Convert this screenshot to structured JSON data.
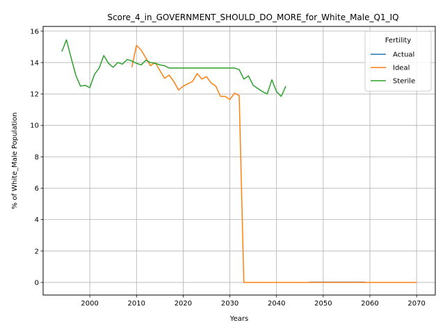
{
  "chart_data": {
    "type": "line",
    "title": "Score_4_in_GOVERNMENT_SHOULD_DO_MORE_for_White_Male_Q1_IQ",
    "xlabel": "Years",
    "ylabel": "% of White_Male Population",
    "xlim": [
      1990,
      2074
    ],
    "ylim": [
      -0.8,
      16.3
    ],
    "x_ticks": [
      2000,
      2010,
      2020,
      2030,
      2040,
      2050,
      2060,
      2070
    ],
    "y_ticks": [
      0,
      2,
      4,
      6,
      8,
      10,
      12,
      14,
      16
    ],
    "grid": true,
    "legend": {
      "title": "Fertility",
      "placement": "top-right"
    },
    "series": [
      {
        "name": "Actual",
        "color": "#1f77b4",
        "points": [
          [
            2047,
            0.02
          ],
          [
            2048,
            0.02
          ],
          [
            2050,
            0.02
          ],
          [
            2052,
            0.02
          ],
          [
            2054,
            0.02
          ],
          [
            2056,
            0.02
          ],
          [
            2058,
            0.02
          ],
          [
            2059,
            0.02
          ]
        ]
      },
      {
        "name": "Ideal",
        "color": "#ff7f0e",
        "points": [
          [
            2009,
            13.7
          ],
          [
            2010,
            15.1
          ],
          [
            2011,
            14.8
          ],
          [
            2012,
            14.3
          ],
          [
            2013,
            13.8
          ],
          [
            2014,
            14.0
          ],
          [
            2015,
            13.5
          ],
          [
            2016,
            13.0
          ],
          [
            2017,
            13.2
          ],
          [
            2018,
            12.8
          ],
          [
            2019,
            12.25
          ],
          [
            2020,
            12.5
          ],
          [
            2021,
            12.65
          ],
          [
            2022,
            12.8
          ],
          [
            2023,
            13.3
          ],
          [
            2024,
            12.95
          ],
          [
            2025,
            13.1
          ],
          [
            2026,
            12.7
          ],
          [
            2027,
            12.5
          ],
          [
            2028,
            11.85
          ],
          [
            2029,
            11.85
          ],
          [
            2030,
            11.65
          ],
          [
            2031,
            12.05
          ],
          [
            2032,
            11.9
          ],
          [
            2033,
            0.0
          ],
          [
            2040,
            0.0
          ],
          [
            2050,
            0.0
          ],
          [
            2060,
            0.0
          ],
          [
            2070,
            0.0
          ]
        ]
      },
      {
        "name": "Sterile",
        "color": "#2ca02c",
        "points": [
          [
            1994,
            14.7
          ],
          [
            1995,
            15.45
          ],
          [
            1996,
            14.3
          ],
          [
            1997,
            13.2
          ],
          [
            1998,
            12.5
          ],
          [
            1999,
            12.55
          ],
          [
            2000,
            12.4
          ],
          [
            2001,
            13.25
          ],
          [
            2002,
            13.65
          ],
          [
            2003,
            14.45
          ],
          [
            2004,
            13.95
          ],
          [
            2005,
            13.7
          ],
          [
            2006,
            14.0
          ],
          [
            2007,
            13.9
          ],
          [
            2008,
            14.2
          ],
          [
            2009,
            14.1
          ],
          [
            2010,
            13.95
          ],
          [
            2011,
            13.85
          ],
          [
            2012,
            14.15
          ],
          [
            2013,
            14.0
          ],
          [
            2014,
            13.95
          ],
          [
            2015,
            13.85
          ],
          [
            2016,
            13.8
          ],
          [
            2017,
            13.65
          ],
          [
            2020,
            13.65
          ],
          [
            2025,
            13.65
          ],
          [
            2030,
            13.65
          ],
          [
            2031,
            13.65
          ],
          [
            2032,
            13.55
          ],
          [
            2033,
            12.95
          ],
          [
            2034,
            13.15
          ],
          [
            2035,
            12.55
          ],
          [
            2036,
            12.35
          ],
          [
            2037,
            12.15
          ],
          [
            2038,
            12.0
          ],
          [
            2039,
            12.9
          ],
          [
            2040,
            12.15
          ],
          [
            2041,
            11.85
          ],
          [
            2042,
            12.5
          ]
        ]
      }
    ]
  }
}
